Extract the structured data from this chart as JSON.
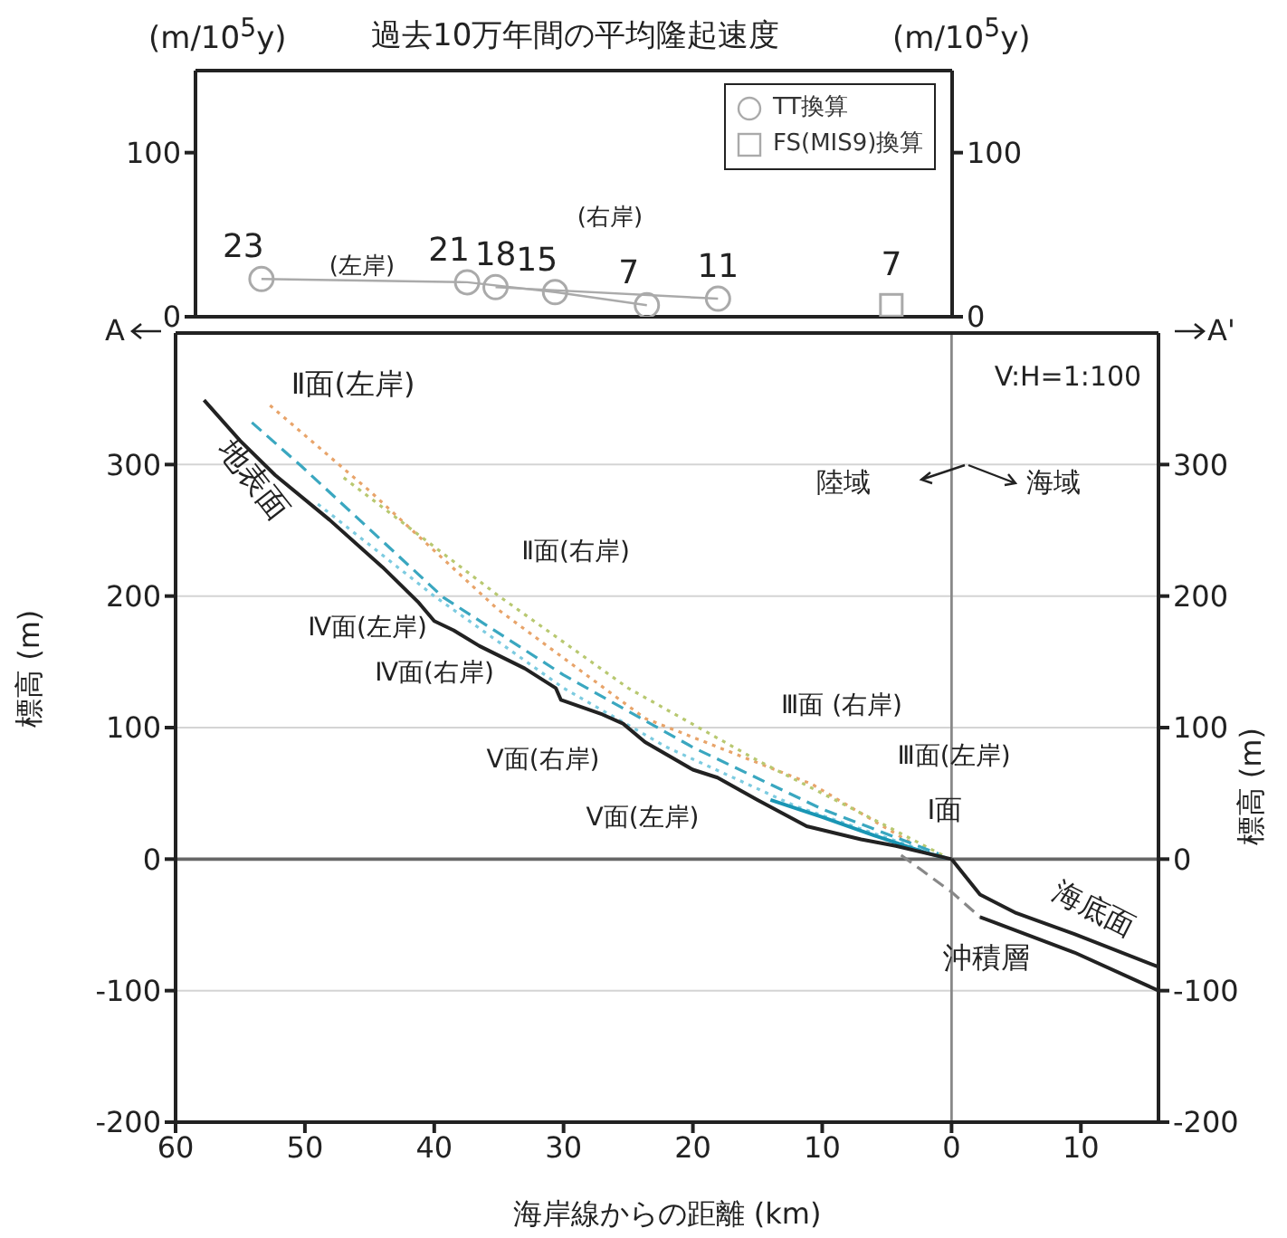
{
  "chart_data": [
    {
      "type": "line",
      "title": "過去10万年間の平均隆起速度",
      "ylabel": "(m/10$^{5}$y)",
      "y2label": "(m/10$^{5}$y)",
      "xlim": [
        58.5,
        0
      ],
      "xticks": [
        50,
        40,
        30,
        20,
        10,
        0
      ],
      "ylim": [
        0,
        150
      ],
      "yticks": [
        0,
        100
      ],
      "y2lim": [
        0,
        150
      ],
      "y2ticks": [
        0,
        100
      ],
      "tick_labels": "y",
      "legend": "top right",
      "data_labels": true,
      "series": [
        {
          "name": "TT換算",
          "marker": "circle",
          "color": "#aaaaaa",
          "x": [
            53.4,
            37.5,
            30.7,
            23.6
          ],
          "values": [
            23,
            21,
            15,
            7
          ]
        },
        {
          "marker": "circle",
          "color": "#aaaaaa",
          "x": [
            35.3,
            18.1
          ],
          "values": [
            18,
            11
          ]
        },
        {
          "name": "FS(MIS9)換算",
          "type": "scatter",
          "marker": "square",
          "color": "#aaaaaa",
          "x": [
            4.7
          ],
          "values": [
            7
          ]
        }
      ],
      "annotations": [
        "(左岸)",
        "(右岸)"
      ]
    },
    {
      "type": "line",
      "xlabel": "海岸線からの距離 (km)",
      "ylabel": "標高 (m)",
      "y2label": "標高 (m)",
      "xlim": [
        60,
        -16
      ],
      "xticks": [
        60,
        50,
        40,
        30,
        20,
        10,
        0,
        {
          "value": -10,
          "label": "10"
        }
      ],
      "ylim": [
        -200,
        400
      ],
      "yticks": [
        -200,
        -100,
        0,
        100,
        200,
        300
      ],
      "y2lim": [
        -200,
        400
      ],
      "y2ticks": [
        -200,
        -100,
        0,
        100,
        200,
        300
      ],
      "grid": "y",
      "ref_lines": [
        {
          "axis": "y",
          "value": 0,
          "color": "#666666"
        },
        {
          "axis": "x",
          "value": 0,
          "color": "#888888"
        }
      ],
      "series": [
        {
          "color": "#e8a46a",
          "line_style": "dotted",
          "x": [
            52.7,
            45,
            35.1,
            23.7,
            10.8,
            2.9
          ],
          "values": [
            345,
            280,
            190,
            107,
            57,
            11
          ]
        },
        {
          "color": "#b8c870",
          "line_style": "dotted",
          "x": [
            47,
            35,
            25,
            15,
            5,
            0.5
          ],
          "values": [
            290,
            200,
            130,
            75,
            25,
            2
          ]
        },
        {
          "color": "#3aa7c0",
          "line_style": "dashed",
          "x": [
            54.1,
            50.3,
            39.3,
            30,
            20,
            10,
            1
          ],
          "values": [
            332,
            299,
            199,
            140,
            85,
            38,
            4
          ]
        },
        {
          "color": "#7ccbe0",
          "line_style": "dotted",
          "x": [
            49,
            40,
            30,
            22,
            12,
            2
          ],
          "values": [
            270,
            200,
            130,
            85,
            40,
            6
          ]
        },
        {
          "color": "#1a96b4",
          "line_style": "solid",
          "x": [
            14,
            10,
            6,
            2,
            0.5
          ],
          "values": [
            45,
            32,
            18,
            5,
            1
          ]
        },
        {
          "color": "#222222",
          "line_style": "solid",
          "x": [
            57.8,
            55,
            52.3,
            48.1,
            44,
            41.2,
            40,
            38.5,
            36.5,
            33,
            30.6,
            30.2,
            27,
            25.4,
            23.7,
            20,
            18.1,
            15,
            11.2,
            7,
            4.3,
            0
          ],
          "values": [
            349,
            318,
            292,
            258,
            222,
            195,
            181,
            174,
            162,
            145,
            130,
            121,
            110,
            103,
            89,
            68,
            62,
            45,
            25,
            15,
            10,
            0
          ]
        },
        {
          "color": "#222222",
          "line_style": "solid",
          "x": [
            0,
            -2.2,
            -5,
            -9.5,
            -16
          ],
          "values": [
            0,
            -27,
            -41,
            -57,
            -82
          ]
        },
        {
          "color": "#888888",
          "line_style": "dashed",
          "x": [
            3.9,
            0,
            -2.2
          ],
          "values": [
            3,
            -25,
            -44
          ]
        },
        {
          "color": "#222222",
          "line_style": "solid",
          "x": [
            -2.2,
            -9.5,
            -16
          ],
          "values": [
            -44,
            -71,
            -100
          ]
        }
      ],
      "annotations": [
        "A",
        "A'",
        "Ⅱ面(左岸)",
        "地表面",
        "Ⅱ面(右岸)",
        "Ⅳ面(左岸)",
        "Ⅳ面(右岸)",
        "Ⅴ面(右岸)",
        "Ⅴ面(左岸)",
        "Ⅲ面 (右岸)",
        "Ⅲ面(左岸)",
        "Ⅰ面",
        "海底面",
        "沖積層",
        "V:H=1:100",
        "陸域",
        "海域"
      ]
    }
  ]
}
